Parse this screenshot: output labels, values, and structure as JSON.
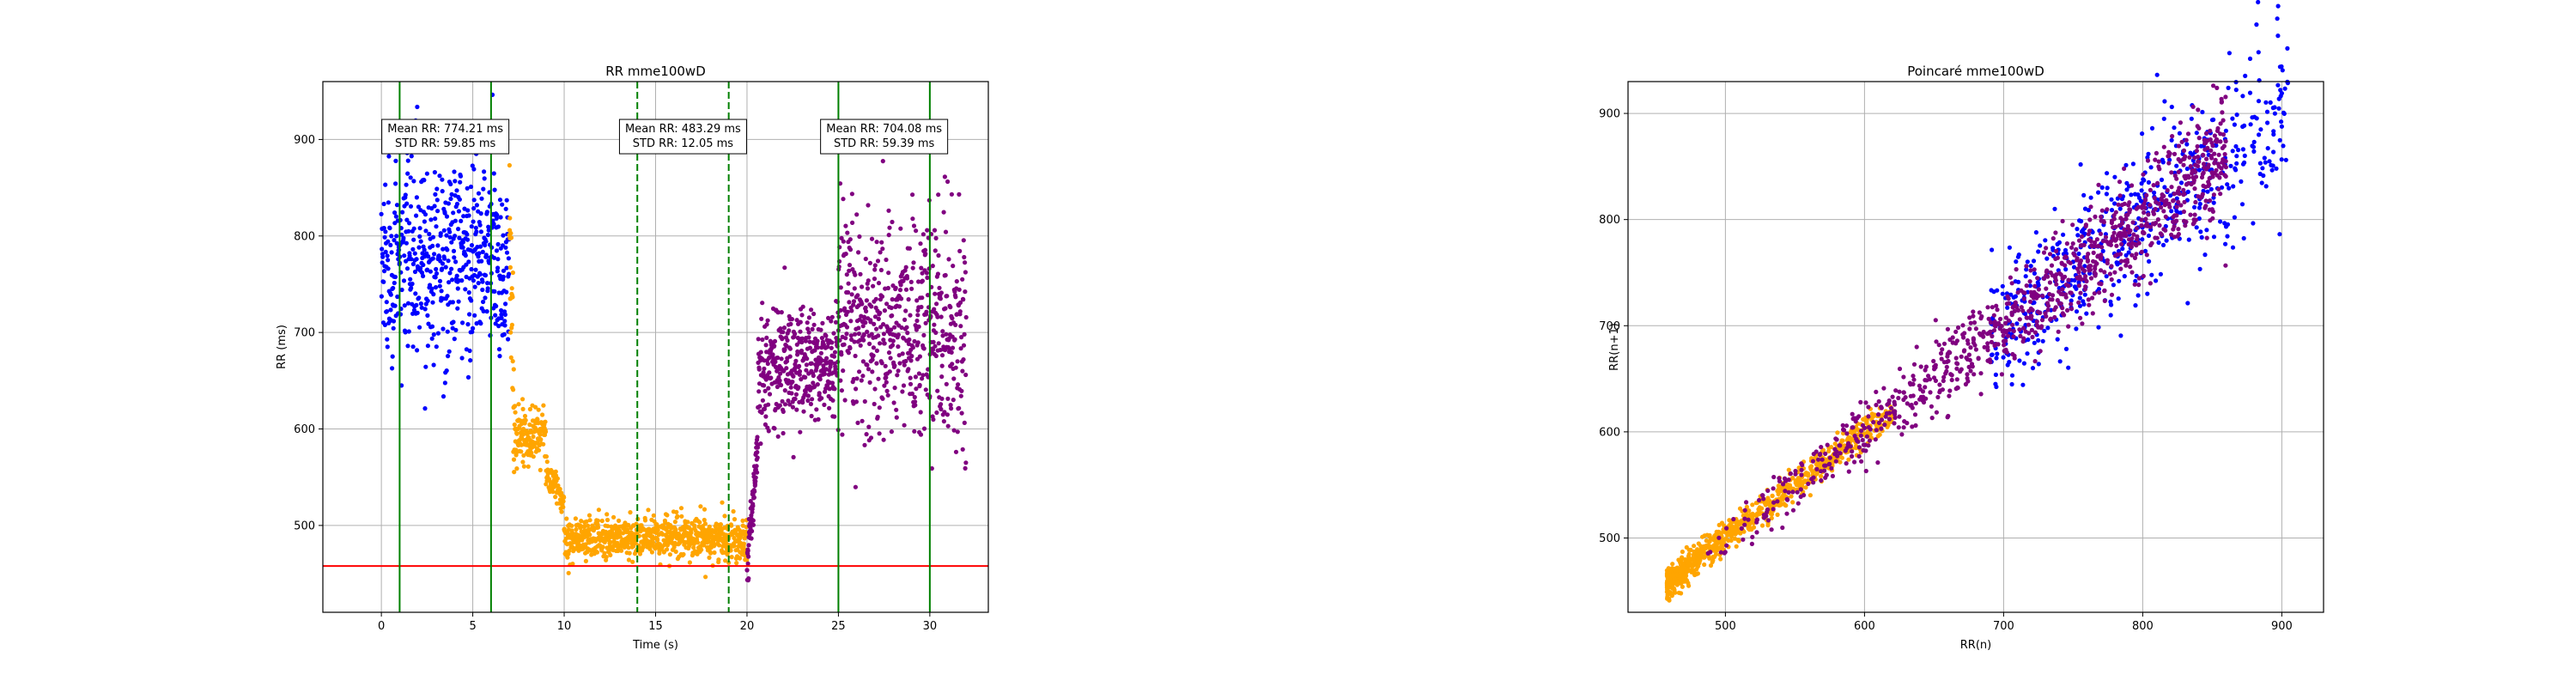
{
  "colors": {
    "rest": "#0000ff",
    "exercise": "#ffa500",
    "recovery": "#800080",
    "vline_solid": "#008000",
    "vline_dashed": "#008000",
    "baseline": "#ff0000",
    "grid": "#b0b0b0"
  },
  "chart_data": [
    {
      "type": "scatter",
      "title": "RR mme100wD",
      "xlabel": "Time (s)",
      "ylabel": "RR (ms)",
      "xlim": [
        -3.2,
        33.2
      ],
      "ylim": [
        410,
        960
      ],
      "xticks": [
        0,
        5,
        10,
        15,
        20,
        25,
        30
      ],
      "yticks": [
        500,
        600,
        700,
        800,
        900
      ],
      "grid": true,
      "horizontal_line": {
        "y": 458,
        "color": "red"
      },
      "vertical_lines": [
        {
          "x": 1,
          "style": "solid"
        },
        {
          "x": 6,
          "style": "solid"
        },
        {
          "x": 14,
          "style": "dashed"
        },
        {
          "x": 19,
          "style": "dashed"
        },
        {
          "x": 25,
          "style": "solid"
        },
        {
          "x": 30,
          "style": "solid"
        }
      ],
      "annotations": [
        {
          "x": 3.5,
          "y": 903,
          "lines": [
            "Mean RR: 774.21 ms",
            "STD RR: 59.85 ms"
          ]
        },
        {
          "x": 16.5,
          "y": 903,
          "lines": [
            "Mean RR: 483.29 ms",
            "STD RR: 12.05 ms"
          ]
        },
        {
          "x": 27.5,
          "y": 903,
          "lines": [
            "Mean RR: 704.08 ms",
            "STD RR: 59.39 ms"
          ]
        }
      ],
      "segments": [
        {
          "phase": "rest",
          "x_start": 0.0,
          "x_end": 7.0,
          "count": 560,
          "mean": 774,
          "spread": 52,
          "trend": "flat"
        },
        {
          "phase": "exercise",
          "x_start": 7.0,
          "x_end": 7.3,
          "count": 30,
          "mean": 700,
          "spread": 90,
          "trend": "drop"
        },
        {
          "phase": "exercise",
          "x_start": 7.3,
          "x_end": 9.0,
          "count": 140,
          "mean": 595,
          "spread": 14,
          "trend": "flat"
        },
        {
          "phase": "exercise",
          "x_start": 9.0,
          "x_end": 10.0,
          "count": 70,
          "mean": 540,
          "spread": 14,
          "trend": "drop"
        },
        {
          "phase": "exercise",
          "x_start": 10.0,
          "x_end": 20.0,
          "count": 780,
          "mean": 487,
          "spread": 11,
          "trend": "flat"
        },
        {
          "phase": "recovery",
          "x_start": 20.0,
          "x_end": 20.6,
          "count": 70,
          "mean": 520,
          "spread": 25,
          "trend": "rise"
        },
        {
          "phase": "recovery",
          "x_start": 20.6,
          "x_end": 25.0,
          "count": 380,
          "mean": 665,
          "spread": 30,
          "trend": "flat"
        },
        {
          "phase": "recovery",
          "x_start": 25.0,
          "x_end": 32.0,
          "count": 560,
          "mean": 705,
          "spread": 55,
          "trend": "flat"
        }
      ]
    },
    {
      "type": "scatter",
      "title": "Poincaré mme100wD",
      "xlabel": "RR(n)",
      "ylabel": "RR(n+1)",
      "xlim": [
        430,
        930
      ],
      "ylim": [
        430,
        930
      ],
      "xticks": [
        500,
        600,
        700,
        800,
        900
      ],
      "yticks": [
        500,
        600,
        700,
        800,
        900
      ],
      "grid": true,
      "clusters": [
        {
          "phase": "rest",
          "rr_min": 690,
          "rr_max": 905,
          "count": 560,
          "spread": 28
        },
        {
          "phase": "exercise",
          "rr_min": 458,
          "rr_max": 620,
          "count": 820,
          "spread": 7
        },
        {
          "phase": "recovery",
          "rr_min": 480,
          "rr_max": 860,
          "count": 1000,
          "spread": 20
        }
      ]
    }
  ]
}
